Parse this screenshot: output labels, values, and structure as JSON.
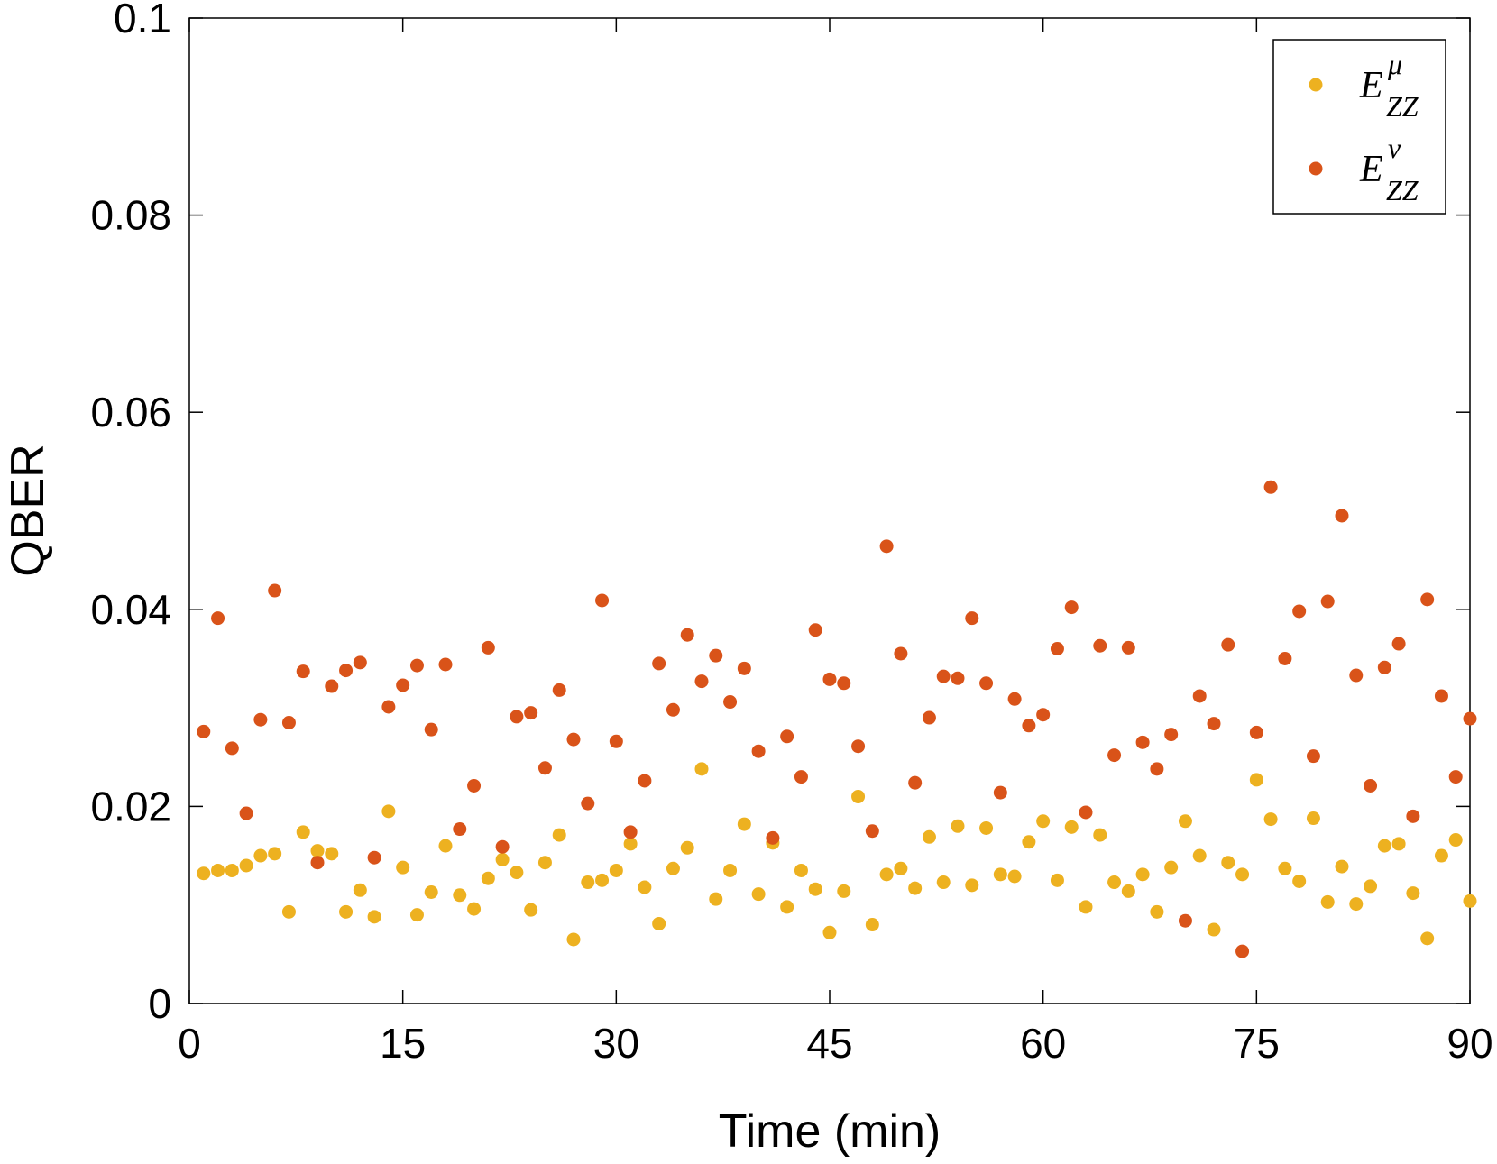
{
  "chart_data": {
    "type": "scatter",
    "xlabel": "Time (min)",
    "ylabel": "QBER",
    "xlim": [
      0,
      90
    ],
    "ylim": [
      0,
      0.1
    ],
    "xticks": [
      0,
      15,
      30,
      45,
      60,
      75,
      90
    ],
    "xtick_labels": [
      "0",
      "15",
      "30",
      "45",
      "60",
      "75",
      "90"
    ],
    "yticks": [
      0,
      0.02,
      0.04,
      0.06,
      0.08,
      0.1
    ],
    "ytick_labels": [
      "0",
      "0.02",
      "0.04",
      "0.06",
      "0.08",
      "0.1"
    ],
    "grid": false,
    "legend_position": "top-right",
    "series": [
      {
        "name_main": "E",
        "name_sup": "μ",
        "name_sub": "ZZ",
        "color": "#EDB120",
        "x": [
          1,
          2,
          3,
          4,
          5,
          6,
          7,
          8,
          9,
          10,
          11,
          12,
          13,
          14,
          15,
          16,
          17,
          18,
          19,
          20,
          21,
          22,
          23,
          24,
          25,
          26,
          27,
          28,
          29,
          30,
          31,
          32,
          33,
          34,
          35,
          36,
          37,
          38,
          39,
          40,
          41,
          42,
          43,
          44,
          45,
          46,
          47,
          48,
          49,
          50,
          51,
          52,
          53,
          54,
          55,
          56,
          57,
          58,
          59,
          60,
          61,
          62,
          63,
          64,
          65,
          66,
          67,
          68,
          69,
          70,
          71,
          72,
          73,
          74,
          75,
          76,
          77,
          78,
          79,
          80,
          81,
          82,
          83,
          84,
          85,
          86,
          87,
          88,
          89,
          90
        ],
        "y": [
          0.0132,
          0.0135,
          0.0135,
          0.014,
          0.015,
          0.0152,
          0.0093,
          0.0174,
          0.0155,
          0.0152,
          0.0093,
          0.0115,
          0.0088,
          0.0195,
          0.0138,
          0.009,
          0.0113,
          0.016,
          0.011,
          0.0096,
          0.0127,
          0.0146,
          0.0133,
          0.0095,
          0.0143,
          0.0171,
          0.0065,
          0.0123,
          0.0125,
          0.0135,
          0.0162,
          0.0118,
          0.0081,
          0.0137,
          0.0158,
          0.0238,
          0.0106,
          0.0135,
          0.0182,
          0.0111,
          0.0163,
          0.0098,
          0.0135,
          0.0116,
          0.0072,
          0.0114,
          0.021,
          0.008,
          0.0131,
          0.0137,
          0.0117,
          0.0169,
          0.0123,
          0.018,
          0.012,
          0.0178,
          0.0131,
          0.0129,
          0.0164,
          0.0185,
          0.0125,
          0.0179,
          0.0098,
          0.0171,
          0.0123,
          0.0114,
          0.0131,
          0.0093,
          0.0138,
          0.0185,
          0.015,
          0.0075,
          0.0143,
          0.0131,
          0.0227,
          0.0187,
          0.0137,
          0.0124,
          0.0188,
          0.0103,
          0.0139,
          0.0101,
          0.0119,
          0.016,
          0.0162,
          0.0112,
          0.0066,
          0.015,
          0.0166,
          0.0104
        ]
      },
      {
        "name_main": "E",
        "name_sup": "ν",
        "name_sub": "ZZ",
        "color": "#D95319",
        "x": [
          1,
          2,
          3,
          4,
          5,
          6,
          7,
          8,
          9,
          10,
          11,
          12,
          13,
          14,
          15,
          16,
          17,
          18,
          19,
          20,
          21,
          22,
          23,
          24,
          25,
          26,
          27,
          28,
          29,
          30,
          31,
          32,
          33,
          34,
          35,
          36,
          37,
          38,
          39,
          40,
          41,
          42,
          43,
          44,
          45,
          46,
          47,
          48,
          49,
          50,
          51,
          52,
          53,
          54,
          55,
          56,
          57,
          58,
          59,
          60,
          61,
          62,
          63,
          64,
          65,
          66,
          67,
          68,
          69,
          70,
          71,
          72,
          73,
          74,
          75,
          76,
          77,
          78,
          79,
          80,
          81,
          82,
          83,
          84,
          85,
          86,
          87,
          88,
          89,
          90
        ],
        "y": [
          0.0276,
          0.0391,
          0.0259,
          0.0193,
          0.0288,
          0.0419,
          0.0285,
          0.0337,
          0.0143,
          0.0322,
          0.0338,
          0.0346,
          0.0148,
          0.0301,
          0.0323,
          0.0343,
          0.0278,
          0.0344,
          0.0177,
          0.0221,
          0.0361,
          0.0159,
          0.0291,
          0.0295,
          0.0239,
          0.0318,
          0.0268,
          0.0203,
          0.0409,
          0.0266,
          0.0174,
          0.0226,
          0.0345,
          0.0298,
          0.0374,
          0.0327,
          0.0353,
          0.0306,
          0.034,
          0.0256,
          0.0168,
          0.0271,
          0.023,
          0.0379,
          0.0329,
          0.0325,
          0.0261,
          0.0175,
          0.0464,
          0.0355,
          0.0224,
          0.029,
          0.0332,
          0.033,
          0.0391,
          0.0325,
          0.0214,
          0.0309,
          0.0282,
          0.0293,
          0.036,
          0.0402,
          0.0194,
          0.0363,
          0.0252,
          0.0361,
          0.0265,
          0.0238,
          0.0273,
          0.0084,
          0.0312,
          0.0284,
          0.0364,
          0.0053,
          0.0275,
          0.0524,
          0.035,
          0.0398,
          0.0251,
          0.0408,
          0.0495,
          0.0333,
          0.0221,
          0.0341,
          0.0365,
          0.019,
          0.041,
          0.0312,
          0.023,
          0.0289
        ]
      }
    ]
  }
}
